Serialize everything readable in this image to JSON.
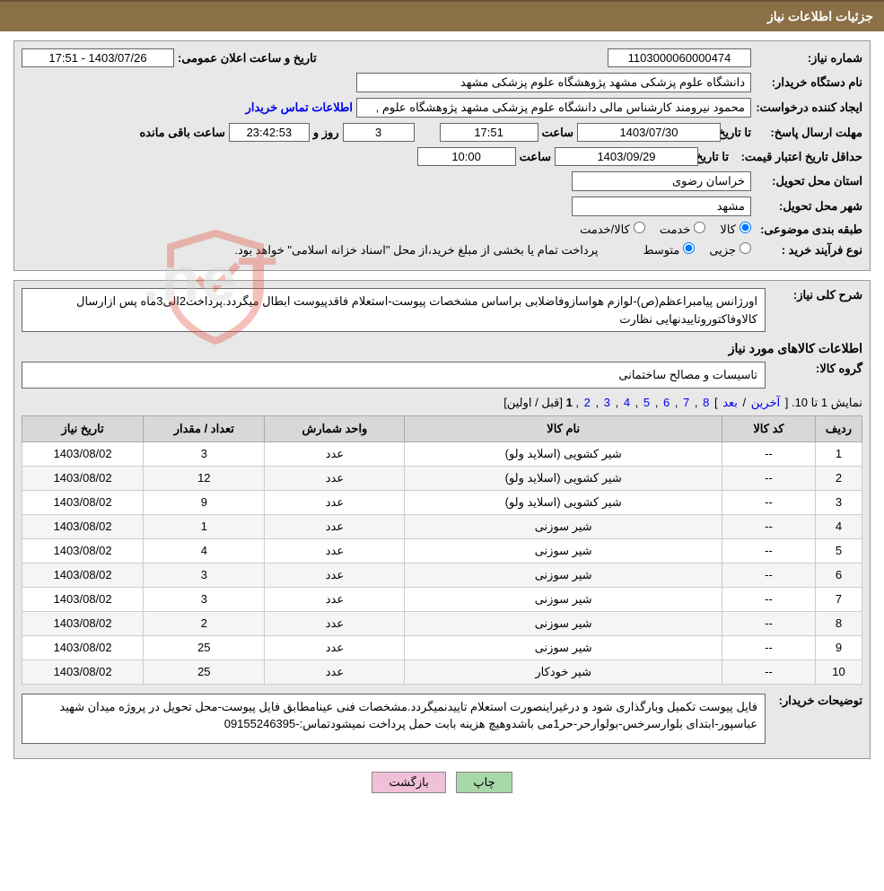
{
  "header": {
    "title": "جزئیات اطلاعات نیاز"
  },
  "form": {
    "need_no_label": "شماره نیاز:",
    "need_no": "1103000060000474",
    "announce_label": "تاریخ و ساعت اعلان عمومی:",
    "announce_value": "1403/07/26 - 17:51",
    "buyer_label": "نام دستگاه خریدار:",
    "buyer_value": "دانشگاه علوم پزشکی مشهد   پژوهشگاه علوم پزشکی مشهد",
    "requester_label": "ایجاد کننده درخواست:",
    "requester_value": "محمود نیرومند کارشناس مالی دانشگاه علوم پزشکی مشهد   پژوهشگاه علوم ,",
    "contact_link": "اطلاعات تماس خریدار",
    "deadline_label": "مهلت ارسال پاسخ:",
    "to_date_label": "تا تاریخ:",
    "deadline_date": "1403/07/30",
    "time_label": "ساعت",
    "deadline_time": "17:51",
    "days_value": "3",
    "days_and_label": "روز و",
    "countdown": "23:42:53",
    "remaining_label": "ساعت باقی مانده",
    "validity_label": "حداقل تاریخ اعتبار قیمت:",
    "validity_date": "1403/09/29",
    "validity_time": "10:00",
    "province_label": "استان محل تحویل:",
    "province_value": "خراسان رضوی",
    "city_label": "شهر محل تحویل:",
    "city_value": "مشهد",
    "category_label": "طبقه بندی موضوعی:",
    "cat_goods": "کالا",
    "cat_service": "خدمت",
    "cat_goods_service": "کالا/خدمت",
    "process_label": "نوع فرآیند خرید :",
    "proc_small": "جزیی",
    "proc_medium": "متوسط",
    "payment_note": "پرداخت تمام یا بخشی از مبلغ خرید،از محل \"اسناد خزانه اسلامی\" خواهد بود."
  },
  "desc": {
    "general_label": "شرح کلی نیاز:",
    "general_text": "اورژانس پیامبراعظم(ص)-لوازم هواسازوفاضلابی براساس مشخصات پیوست-استعلام فاقدپیوست ابطال میگردد.پرداخت2الی3ماه پس ازارسال کالاوفاکتوروتاییدنهایی نظارت",
    "goods_title": "اطلاعات کالاهای مورد نیاز",
    "group_label": "گروه کالا:",
    "group_value": "تاسیسات و مصالح ساختمانی",
    "buyer_notes_label": "توضیحات خریدار:",
    "buyer_notes_text": "فایل پیوست تکمیل وبارگذاری شود و درغیراینصورت استعلام تاییدنمیگردد.مشخصات فنی عینامطابق فایل پیوست-محل تحویل در پروژه میدان شهید عباسپور-ابتدای بلوارسرخس-بولوارحر-حر1می باشدوهیچ هزینه بابت حمل  پرداخت نمیشودتماس:-09155246395"
  },
  "pagination": {
    "showing": "نمایش 1 تا 10.",
    "last": "آخرین",
    "next": "بعد",
    "pages": [
      "8",
      "7",
      "6",
      "5",
      "4",
      "3",
      "2"
    ],
    "current": "1",
    "prev": "قبل",
    "first": "اولین"
  },
  "table": {
    "headers": {
      "row": "ردیف",
      "code": "کد کالا",
      "name": "نام کالا",
      "unit": "واحد شمارش",
      "qty": "تعداد / مقدار",
      "date": "تاریخ نیاز"
    },
    "rows": [
      {
        "n": "1",
        "code": "--",
        "name": "شیر کشویی (اسلاید ولو)",
        "unit": "عدد",
        "qty": "3",
        "date": "1403/08/02"
      },
      {
        "n": "2",
        "code": "--",
        "name": "شیر کشویی (اسلاید ولو)",
        "unit": "عدد",
        "qty": "12",
        "date": "1403/08/02"
      },
      {
        "n": "3",
        "code": "--",
        "name": "شیر کشویی (اسلاید ولو)",
        "unit": "عدد",
        "qty": "9",
        "date": "1403/08/02"
      },
      {
        "n": "4",
        "code": "--",
        "name": "شیر سوزنی",
        "unit": "عدد",
        "qty": "1",
        "date": "1403/08/02"
      },
      {
        "n": "5",
        "code": "--",
        "name": "شیر سوزنی",
        "unit": "عدد",
        "qty": "4",
        "date": "1403/08/02"
      },
      {
        "n": "6",
        "code": "--",
        "name": "شیر سوزنی",
        "unit": "عدد",
        "qty": "3",
        "date": "1403/08/02"
      },
      {
        "n": "7",
        "code": "--",
        "name": "شیر سوزنی",
        "unit": "عدد",
        "qty": "3",
        "date": "1403/08/02"
      },
      {
        "n": "8",
        "code": "--",
        "name": "شیر سوزنی",
        "unit": "عدد",
        "qty": "2",
        "date": "1403/08/02"
      },
      {
        "n": "9",
        "code": "--",
        "name": "شیر سوزنی",
        "unit": "عدد",
        "qty": "25",
        "date": "1403/08/02"
      },
      {
        "n": "10",
        "code": "--",
        "name": "شیر خودکار",
        "unit": "عدد",
        "qty": "25",
        "date": "1403/08/02"
      }
    ]
  },
  "buttons": {
    "print": "چاپ",
    "back": "بازگشت"
  },
  "colors": {
    "header_bg": "#8b6f47",
    "panel_bg": "#e8e8e8",
    "th_bg": "#d8d8d8",
    "link": "#0000ee",
    "btn_green": "#a8d8a8",
    "btn_pink": "#f0c0d8"
  }
}
